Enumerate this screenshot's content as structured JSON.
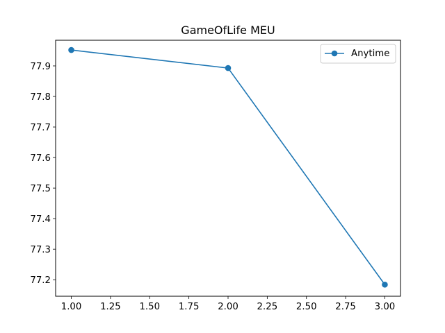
{
  "chart_data": {
    "type": "line",
    "title": "GameOfLife MEU",
    "xlabel": "",
    "ylabel": "",
    "xlim": [
      0.9,
      3.1
    ],
    "ylim": [
      77.146,
      77.984
    ],
    "x_ticks": [
      1.0,
      1.25,
      1.5,
      1.75,
      2.0,
      2.25,
      2.5,
      2.75,
      3.0
    ],
    "x_tick_labels": [
      "1.00",
      "1.25",
      "1.50",
      "1.75",
      "2.00",
      "2.25",
      "2.50",
      "2.75",
      "3.00"
    ],
    "y_ticks": [
      77.2,
      77.3,
      77.4,
      77.5,
      77.6,
      77.7,
      77.8,
      77.9
    ],
    "y_tick_labels": [
      "77.2",
      "77.3",
      "77.4",
      "77.5",
      "77.6",
      "77.7",
      "77.8",
      "77.9"
    ],
    "grid": false,
    "legend_position": "top-right",
    "series": [
      {
        "name": "Anytime",
        "color": "#1f77b4",
        "marker": "circle",
        "x": [
          1.0,
          2.0,
          3.0
        ],
        "y": [
          77.952,
          77.893,
          77.184
        ]
      }
    ]
  }
}
